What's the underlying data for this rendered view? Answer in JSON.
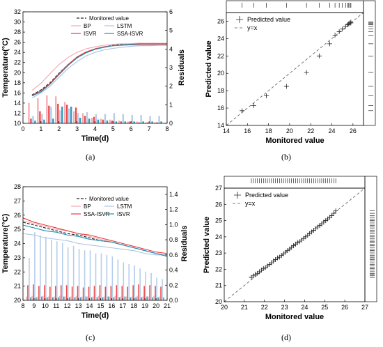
{
  "chart_data": [
    {
      "panel": "(a)",
      "type": "line",
      "xlabel": "Time(d)",
      "ylabel": "Temperature(°C)",
      "y2label": "Residuals",
      "xlim": [
        0,
        8
      ],
      "ylim": [
        10,
        32
      ],
      "y2lim": [
        0,
        6
      ],
      "xticks": [
        0,
        1,
        2,
        3,
        4,
        5,
        6,
        7,
        8
      ],
      "yticks": [
        10,
        12,
        14,
        16,
        18,
        20,
        22,
        24,
        26,
        28,
        30,
        32
      ],
      "y2ticks": [
        0,
        1,
        2,
        3,
        4,
        5,
        6
      ],
      "legend": "top-right",
      "x": [
        0.5,
        1,
        1.5,
        2,
        2.5,
        3,
        3.5,
        4,
        4.5,
        5,
        5.5,
        6,
        6.5,
        7,
        7.5,
        8
      ],
      "series": [
        {
          "name": "Monitored value",
          "color": "#222222",
          "dash": "dashed",
          "values": [
            15.6,
            16.6,
            18.0,
            19.9,
            21.6,
            23.0,
            24.0,
            24.7,
            25.1,
            25.4,
            25.6,
            25.7,
            25.8,
            25.8,
            25.8,
            25.8
          ]
        },
        {
          "name": "BP",
          "color": "#f4a6b0",
          "values": [
            16.5,
            17.9,
            19.8,
            21.6,
            23.0,
            24.0,
            24.7,
            25.1,
            25.4,
            25.6,
            25.7,
            25.7,
            25.8,
            25.8,
            25.8,
            25.8
          ]
        },
        {
          "name": "LSTM",
          "color": "#a9c4e6",
          "values": [
            15.0,
            16.0,
            17.3,
            19.1,
            20.8,
            22.2,
            23.3,
            24.0,
            24.5,
            24.8,
            25.0,
            25.2,
            25.3,
            25.3,
            25.4,
            25.4
          ]
        },
        {
          "name": "ISVR",
          "color": "#e83a3a",
          "values": [
            15.5,
            16.4,
            17.8,
            19.8,
            21.6,
            23.1,
            24.1,
            24.7,
            25.1,
            25.3,
            25.4,
            25.5,
            25.5,
            25.5,
            25.5,
            25.5
          ]
        },
        {
          "name": "SSA-ISVR",
          "color": "#1f8fb0",
          "values": [
            15.4,
            16.2,
            17.7,
            19.6,
            21.4,
            22.9,
            23.9,
            24.6,
            25.0,
            25.3,
            25.5,
            25.6,
            25.7,
            25.7,
            25.7,
            25.7
          ]
        }
      ],
      "residuals": {
        "axis": "right",
        "bar_colors": [
          "#f4a6b0",
          "#e83a3a",
          "#a9c4e6",
          "#1f8fb0"
        ],
        "x": [
          0.5,
          1,
          1.5,
          2,
          2.5,
          3,
          3.5,
          4,
          4.5,
          5,
          5.5,
          6,
          6.5,
          7,
          7.5
        ],
        "BP": [
          1.1,
          1.35,
          1.5,
          1.45,
          1.15,
          0.65,
          0.55,
          0.3,
          0.25,
          0.2,
          0.15,
          0.1,
          0.1,
          0.05,
          0.05
        ],
        "ISVR": [
          0.25,
          0.65,
          0.95,
          1.05,
          1.0,
          0.85,
          0.4,
          0.35,
          0.2,
          0.15,
          0.1,
          0.1,
          0.05,
          0.05,
          0.05
        ],
        "LSTM": [
          0.4,
          0.5,
          0.9,
          0.7,
          0.8,
          0.55,
          0.6,
          0.5,
          0.5,
          0.55,
          0.5,
          0.45,
          0.45,
          0.4,
          0.4
        ],
        "SSA-ISVR": [
          0.15,
          0.2,
          0.25,
          0.9,
          0.9,
          0.3,
          0.25,
          0.2,
          0.15,
          0.1,
          0.1,
          0.1,
          0.1,
          0.1,
          0.1
        ]
      }
    },
    {
      "panel": "(b)",
      "type": "scatter",
      "xlabel": "Monitored value",
      "ylabel": "Predicted value",
      "xlim": [
        14,
        27
      ],
      "ylim": [
        14,
        27
      ],
      "ticks": [
        14,
        16,
        18,
        20,
        22,
        24,
        26
      ],
      "legend": "top-left",
      "series": [
        {
          "name": "Predicted value",
          "marker": "+",
          "color": "#222222",
          "x": [
            15.5,
            16.6,
            17.8,
            19.7,
            21.6,
            22.8,
            23.8,
            24.3,
            24.7,
            25.0,
            25.3,
            25.5,
            25.6,
            25.7,
            25.8,
            25.8
          ],
          "y": [
            15.7,
            16.3,
            17.4,
            18.5,
            20.1,
            22.0,
            23.4,
            24.4,
            24.8,
            25.1,
            25.4,
            25.6,
            25.7,
            25.8,
            25.8,
            25.9
          ]
        },
        {
          "name": "y=x",
          "line": "dashed",
          "color": "#555555"
        }
      ]
    },
    {
      "panel": "(c)",
      "type": "line",
      "xlabel": "Time(d)",
      "ylabel": "Temperature(°C)",
      "y2label": "Residuals",
      "xlim": [
        8,
        21
      ],
      "ylim": [
        20,
        28
      ],
      "y2lim": [
        0,
        1.5
      ],
      "xticks": [
        8,
        9,
        10,
        11,
        12,
        13,
        14,
        15,
        16,
        17,
        18,
        19,
        20,
        21
      ],
      "yticks": [
        20,
        21,
        22,
        23,
        24,
        25,
        26,
        27,
        28
      ],
      "y2ticks": [
        0.0,
        0.2,
        0.4,
        0.6,
        0.8,
        1.0,
        1.2,
        1.4
      ],
      "legend": "top-right",
      "x": [
        8,
        9,
        10,
        11,
        12,
        13,
        14,
        15,
        16,
        17,
        18,
        19,
        20,
        21
      ],
      "series": [
        {
          "name": "Monitored value",
          "color": "#222222",
          "dash": "dashed",
          "values": [
            25.5,
            25.3,
            25.1,
            24.9,
            24.7,
            24.6,
            24.4,
            24.2,
            24.1,
            23.9,
            23.7,
            23.5,
            23.3,
            23.1
          ]
        },
        {
          "name": "BP",
          "color": "#f4a6b0",
          "values": [
            25.6,
            25.4,
            25.2,
            25.0,
            24.9,
            24.7,
            24.5,
            24.3,
            24.1,
            23.9,
            23.7,
            23.5,
            23.3,
            23.2
          ]
        },
        {
          "name": "LSTM",
          "color": "#a9c4e6",
          "values": [
            24.7,
            24.6,
            24.4,
            24.3,
            24.2,
            24.0,
            23.9,
            23.8,
            23.7,
            23.6,
            23.5,
            23.3,
            23.2,
            23.2
          ]
        },
        {
          "name": "SSA-ISVR",
          "color": "#e83a3a",
          "values": [
            25.8,
            25.5,
            25.3,
            25.1,
            24.9,
            24.7,
            24.6,
            24.4,
            24.2,
            24.0,
            23.8,
            23.6,
            23.4,
            23.3
          ]
        },
        {
          "name": "ISVR",
          "color": "#1f8fb0",
          "values": [
            25.3,
            25.1,
            24.9,
            24.8,
            24.6,
            24.5,
            24.3,
            24.2,
            24.1,
            23.9,
            23.7,
            23.5,
            23.3,
            23.1
          ]
        }
      ],
      "residuals": {
        "axis": "right",
        "bar_colors": [
          "#f4a6b0",
          "#e83a3a",
          "#a9c4e6",
          "#1f8fb0"
        ],
        "x": [
          8.5,
          9,
          9.5,
          10,
          10.5,
          11,
          11.5,
          12,
          12.5,
          13,
          13.5,
          14,
          14.5,
          15,
          15.5,
          16,
          16.5,
          17,
          17.5,
          18,
          18.5,
          19,
          19.5,
          20,
          20.5
        ],
        "LSTM": [
          0.56,
          0.9,
          0.86,
          0.84,
          0.8,
          0.78,
          0.76,
          0.7,
          0.72,
          0.68,
          0.66,
          0.66,
          0.62,
          0.62,
          0.6,
          0.58,
          0.54,
          0.5,
          0.48,
          0.46,
          0.42,
          0.38,
          0.36,
          0.3,
          0.28
        ],
        "ISVR": [
          0.2,
          0.21,
          0.19,
          0.2,
          0.18,
          0.19,
          0.2,
          0.2,
          0.18,
          0.19,
          0.17,
          0.18,
          0.19,
          0.2,
          0.18,
          0.19,
          0.2,
          0.19,
          0.18,
          0.2,
          0.21,
          0.19,
          0.2,
          0.19,
          0.18
        ],
        "BP": [
          0.05,
          0.06,
          0.05,
          0.06,
          0.05,
          0.05,
          0.06,
          0.05,
          0.05,
          0.06,
          0.05,
          0.05,
          0.05,
          0.06,
          0.05,
          0.05,
          0.06,
          0.05,
          0.05,
          0.05,
          0.06,
          0.05,
          0.05,
          0.06,
          0.05
        ],
        "SSA-ISVR": [
          0.04,
          0.04,
          0.05,
          0.04,
          0.04,
          0.04,
          0.05,
          0.04,
          0.04,
          0.04,
          0.05,
          0.04,
          0.04,
          0.04,
          0.05,
          0.04,
          0.04,
          0.05,
          0.04,
          0.04,
          0.04,
          0.05,
          0.04,
          0.04,
          0.04
        ]
      }
    },
    {
      "panel": "(d)",
      "type": "scatter",
      "xlabel": "Monitored value",
      "ylabel": "Predicted value",
      "xlim": [
        20,
        27
      ],
      "ylim": [
        20,
        27
      ],
      "ticks": [
        20,
        21,
        22,
        23,
        24,
        25,
        26,
        27
      ],
      "legend": "top-left",
      "series": [
        {
          "name": "Predicted value",
          "marker": "+",
          "color": "#222222",
          "x": [
            21.35,
            21.45,
            21.55,
            21.65,
            21.75,
            21.85,
            21.95,
            22.05,
            22.15,
            22.25,
            22.35,
            22.45,
            22.55,
            22.65,
            22.75,
            22.85,
            22.95,
            23.05,
            23.15,
            23.25,
            23.35,
            23.45,
            23.55,
            23.65,
            23.75,
            23.85,
            23.95,
            24.05,
            24.15,
            24.25,
            24.35,
            24.45,
            24.55,
            24.65,
            24.75,
            24.85,
            24.95,
            25.05,
            25.15,
            25.25,
            25.35,
            25.45,
            25.55
          ],
          "y": [
            21.5,
            21.6,
            21.7,
            21.75,
            21.85,
            21.95,
            22.05,
            22.1,
            22.2,
            22.3,
            22.4,
            22.5,
            22.6,
            22.7,
            22.75,
            22.85,
            22.95,
            23.05,
            23.15,
            23.25,
            23.35,
            23.45,
            23.55,
            23.65,
            23.7,
            23.8,
            23.9,
            24.0,
            24.1,
            24.2,
            24.3,
            24.4,
            24.5,
            24.6,
            24.7,
            24.8,
            24.9,
            25.0,
            25.1,
            25.2,
            25.3,
            25.45,
            25.6
          ]
        },
        {
          "name": "y=x",
          "line": "dashed",
          "color": "#555555"
        }
      ]
    }
  ]
}
